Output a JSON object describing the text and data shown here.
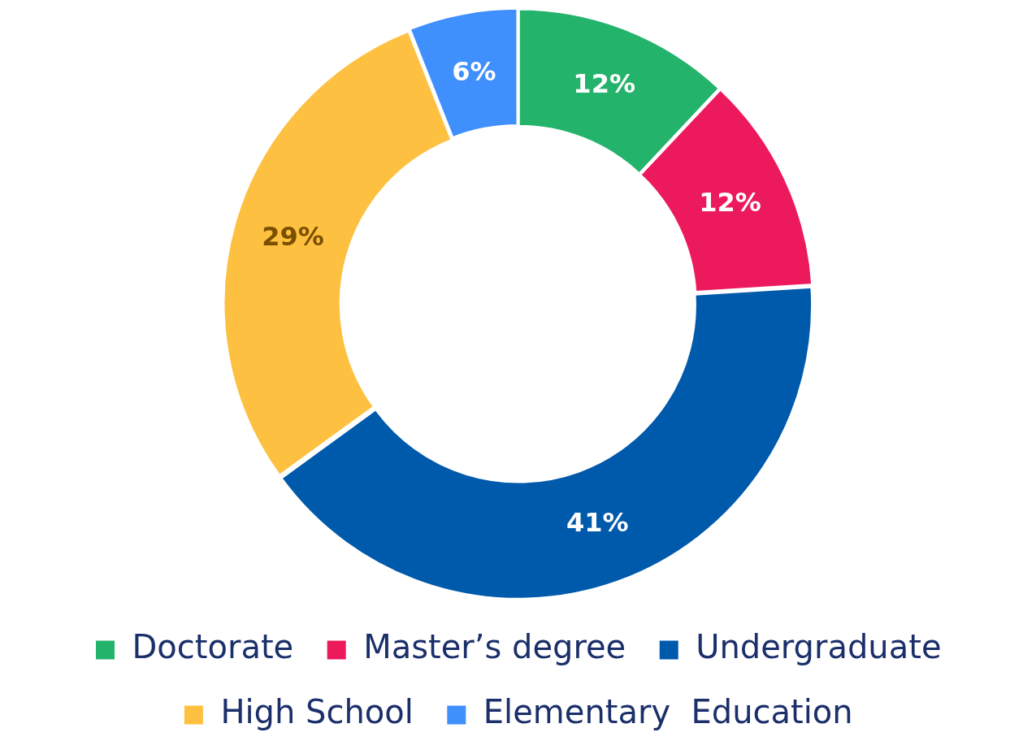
{
  "chart_data": {
    "type": "donut",
    "categories": [
      "Doctorate",
      "Master’s degree",
      "Undergraduate",
      "High School",
      "Elementary  Education"
    ],
    "values": [
      12,
      12,
      41,
      29,
      6
    ],
    "colors": [
      "#24b36b",
      "#ec1a5c",
      "#005aac",
      "#fec040",
      "#3f8ffd"
    ],
    "value_labels": [
      "12%",
      "12%",
      "41%",
      "29%",
      "6%"
    ],
    "legend": "bottom"
  }
}
